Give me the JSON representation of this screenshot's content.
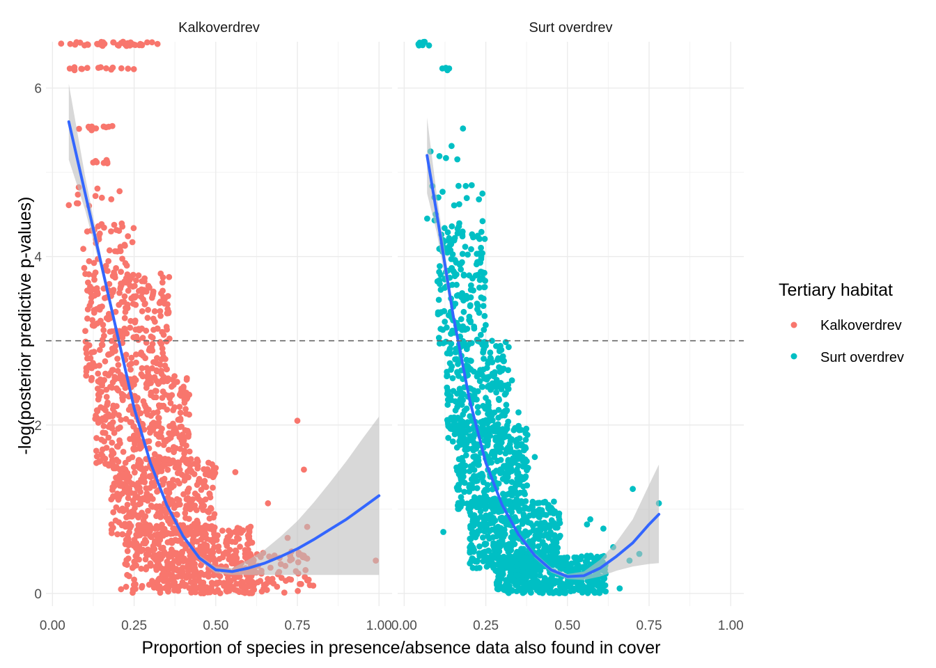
{
  "chart_data": {
    "type": "scatter",
    "xlabel": "Proportion of species in presence/absence data also found in cover",
    "ylabel": "-log(posterior predictive p-values)",
    "xlim": [
      -0.02,
      1.04
    ],
    "ylim": [
      -0.15,
      6.55
    ],
    "x_ticks": [
      "0.00",
      "0.25",
      "0.50",
      "0.75",
      "1.00"
    ],
    "y_ticks": [
      "0",
      "2",
      "4",
      "6"
    ],
    "reference_line": {
      "y": 3,
      "style": "dashed"
    },
    "grid": true,
    "legend": {
      "title": "Tertiary habitat",
      "placement": "right",
      "entries": [
        {
          "label": "Kalkoverdrev",
          "color": "#F8766D"
        },
        {
          "label": "Surt overdrev",
          "color": "#00BFC4"
        }
      ]
    },
    "smooth_color": "#3366FF",
    "ribbon_color": "#BEBEBE",
    "panels": [
      {
        "strip": "Kalkoverdrev",
        "color": "#F8766D",
        "point_ranges": [
          {
            "x": [
              0.02,
              0.33
            ],
            "y": [
              6.5,
              6.55
            ],
            "n": 40
          },
          {
            "x": [
              0.05,
              0.25
            ],
            "y": [
              6.2,
              6.25
            ],
            "n": 14
          },
          {
            "x": [
              0.08,
              0.21
            ],
            "y": [
              5.5,
              5.55
            ],
            "n": 10
          },
          {
            "x": [
              0.1,
              0.2
            ],
            "y": [
              5.1,
              5.15
            ],
            "n": 8
          },
          {
            "x": [
              0.06,
              0.21
            ],
            "y": [
              4.6,
              4.85
            ],
            "n": 10
          },
          {
            "x": [
              0.09,
              0.26
            ],
            "y": [
              3.5,
              4.4
            ],
            "n": 60
          },
          {
            "x": [
              0.1,
              0.36
            ],
            "y": [
              2.5,
              3.8
            ],
            "n": 260
          },
          {
            "x": [
              0.13,
              0.42
            ],
            "y": [
              1.5,
              2.6
            ],
            "n": 320
          },
          {
            "x": [
              0.18,
              0.5
            ],
            "y": [
              0.7,
              1.6
            ],
            "n": 360
          },
          {
            "x": [
              0.22,
              0.62
            ],
            "y": [
              0.0,
              0.8
            ],
            "n": 420
          },
          {
            "x": [
              0.3,
              0.8
            ],
            "y": [
              0.0,
              0.5
            ],
            "n": 180
          }
        ],
        "extra_points": [
          {
            "x": 0.75,
            "y": 2.05
          },
          {
            "x": 0.77,
            "y": 1.47
          },
          {
            "x": 0.56,
            "y": 1.44
          },
          {
            "x": 0.5,
            "y": 1.49
          },
          {
            "x": 0.66,
            "y": 1.07
          },
          {
            "x": 0.78,
            "y": 0.79
          },
          {
            "x": 0.99,
            "y": 0.39
          },
          {
            "x": 0.71,
            "y": 0.01
          },
          {
            "x": 0.21,
            "y": 0.05
          },
          {
            "x": 0.4,
            "y": 0.81
          },
          {
            "x": 0.05,
            "y": 4.61
          },
          {
            "x": 0.15,
            "y": 2.05
          },
          {
            "x": 0.72,
            "y": 0.66
          },
          {
            "x": 0.68,
            "y": 0.45
          }
        ],
        "smooth": {
          "x": [
            0.05,
            0.1,
            0.15,
            0.2,
            0.25,
            0.3,
            0.35,
            0.4,
            0.45,
            0.5,
            0.55,
            0.6,
            0.65,
            0.7,
            0.75,
            0.8,
            0.85,
            0.9,
            0.95,
            1.0
          ],
          "y": [
            5.6,
            4.75,
            3.9,
            3.05,
            2.2,
            1.55,
            1.05,
            0.68,
            0.42,
            0.28,
            0.26,
            0.3,
            0.36,
            0.44,
            0.53,
            0.64,
            0.76,
            0.88,
            1.02,
            1.16
          ],
          "lower": [
            5.15,
            4.55,
            3.82,
            2.98,
            2.16,
            1.52,
            1.02,
            0.65,
            0.39,
            0.24,
            0.22,
            0.22,
            0.22,
            0.22,
            0.22,
            0.22,
            0.22,
            0.22,
            0.22,
            0.22
          ],
          "upper": [
            6.05,
            4.95,
            3.98,
            3.12,
            2.24,
            1.58,
            1.08,
            0.71,
            0.45,
            0.32,
            0.3,
            0.4,
            0.52,
            0.68,
            0.86,
            1.08,
            1.32,
            1.57,
            1.84,
            2.1
          ]
        }
      },
      {
        "strip": "Surt overdrev",
        "color": "#00BFC4",
        "point_ranges": [
          {
            "x": [
              0.04,
              0.08
            ],
            "y": [
              6.5,
              6.55
            ],
            "n": 10
          },
          {
            "x": [
              0.09,
              0.14
            ],
            "y": [
              6.2,
              6.25
            ],
            "n": 4
          },
          {
            "x": [
              0.06,
              0.17
            ],
            "y": [
              5.1,
              5.55
            ],
            "n": 5
          },
          {
            "x": [
              0.07,
              0.24
            ],
            "y": [
              4.3,
              4.85
            ],
            "n": 20
          },
          {
            "x": [
              0.1,
              0.25
            ],
            "y": [
              2.9,
              4.3
            ],
            "n": 170
          },
          {
            "x": [
              0.13,
              0.32
            ],
            "y": [
              1.8,
              3.0
            ],
            "n": 260
          },
          {
            "x": [
              0.16,
              0.38
            ],
            "y": [
              1.0,
              2.0
            ],
            "n": 340
          },
          {
            "x": [
              0.2,
              0.48
            ],
            "y": [
              0.3,
              1.1
            ],
            "n": 420
          },
          {
            "x": [
              0.28,
              0.62
            ],
            "y": [
              0.0,
              0.45
            ],
            "n": 440
          }
        ],
        "extra_points": [
          {
            "x": 0.12,
            "y": 0.73
          },
          {
            "x": 0.24,
            "y": 4.42
          },
          {
            "x": 0.35,
            "y": 2.15
          },
          {
            "x": 0.33,
            "y": 2.53
          },
          {
            "x": 0.7,
            "y": 1.24
          },
          {
            "x": 0.78,
            "y": 1.07
          },
          {
            "x": 0.72,
            "y": 0.47
          },
          {
            "x": 0.66,
            "y": 0.06
          },
          {
            "x": 0.64,
            "y": 0.55
          },
          {
            "x": 0.69,
            "y": 0.39
          },
          {
            "x": 0.57,
            "y": 0.88
          },
          {
            "x": 0.61,
            "y": 0.77
          },
          {
            "x": 0.56,
            "y": 0.82
          },
          {
            "x": 0.18,
            "y": 5.52
          },
          {
            "x": 0.4,
            "y": 1.62
          }
        ],
        "smooth": {
          "x": [
            0.07,
            0.1,
            0.15,
            0.2,
            0.25,
            0.3,
            0.35,
            0.4,
            0.45,
            0.5,
            0.55,
            0.6,
            0.65,
            0.7,
            0.75,
            0.78
          ],
          "y": [
            5.2,
            4.5,
            3.3,
            2.3,
            1.55,
            1.05,
            0.7,
            0.45,
            0.28,
            0.2,
            0.21,
            0.3,
            0.44,
            0.6,
            0.82,
            0.94
          ],
          "lower": [
            4.75,
            4.28,
            3.22,
            2.25,
            1.51,
            1.02,
            0.67,
            0.42,
            0.25,
            0.17,
            0.16,
            0.2,
            0.27,
            0.32,
            0.35,
            0.36
          ],
          "upper": [
            5.65,
            4.72,
            3.38,
            2.35,
            1.59,
            1.08,
            0.73,
            0.48,
            0.31,
            0.23,
            0.26,
            0.4,
            0.61,
            0.88,
            1.29,
            1.53
          ]
        }
      }
    ]
  }
}
